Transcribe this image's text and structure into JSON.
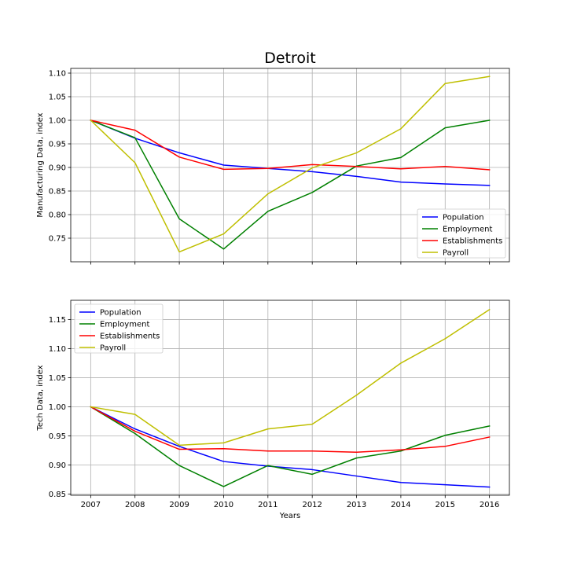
{
  "figure": {
    "title": "Detroit",
    "xlabel": "Years"
  },
  "chart_data": [
    {
      "type": "line",
      "title": "Detroit",
      "xlabel": "",
      "ylabel": "Manufacturing Data, index",
      "x": [
        2007,
        2008,
        2009,
        2010,
        2011,
        2012,
        2013,
        2014,
        2015,
        2016
      ],
      "xlim": [
        2006.55,
        2016.45
      ],
      "ylim": [
        0.7,
        1.11
      ],
      "yticks": [
        0.75,
        0.8,
        0.85,
        0.9,
        0.95,
        1.0,
        1.05,
        1.1
      ],
      "show_xtick_labels": false,
      "grid": true,
      "legend_placement": "lower-right",
      "series": [
        {
          "name": "Population",
          "color": "#0000ff",
          "values": [
            1.0,
            0.962,
            0.931,
            0.905,
            0.898,
            0.891,
            0.881,
            0.869,
            0.865,
            0.862
          ]
        },
        {
          "name": "Employment",
          "color": "#008000",
          "values": [
            1.0,
            0.963,
            0.791,
            0.727,
            0.807,
            0.847,
            0.903,
            0.921,
            0.984,
            1.0
          ]
        },
        {
          "name": "Establishments",
          "color": "#ff0000",
          "values": [
            1.0,
            0.979,
            0.922,
            0.896,
            0.898,
            0.906,
            0.902,
            0.897,
            0.902,
            0.895
          ]
        },
        {
          "name": "Payroll",
          "color": "#bfbf00",
          "values": [
            1.0,
            0.91,
            0.721,
            0.759,
            0.844,
            0.899,
            0.931,
            0.982,
            1.078,
            1.093
          ]
        }
      ]
    },
    {
      "type": "line",
      "title": "",
      "xlabel": "Years",
      "ylabel": "Tech Data, index",
      "x": [
        2007,
        2008,
        2009,
        2010,
        2011,
        2012,
        2013,
        2014,
        2015,
        2016
      ],
      "xlim": [
        2006.55,
        2016.45
      ],
      "ylim": [
        0.848,
        1.183
      ],
      "yticks": [
        0.85,
        0.9,
        0.95,
        1.0,
        1.05,
        1.1,
        1.15
      ],
      "show_xtick_labels": true,
      "grid": true,
      "legend_placement": "upper-left",
      "series": [
        {
          "name": "Population",
          "color": "#0000ff",
          "values": [
            1.0,
            0.962,
            0.932,
            0.906,
            0.898,
            0.892,
            0.881,
            0.87,
            0.866,
            0.862
          ]
        },
        {
          "name": "Employment",
          "color": "#008000",
          "values": [
            1.0,
            0.954,
            0.899,
            0.863,
            0.899,
            0.884,
            0.912,
            0.924,
            0.951,
            0.967
          ]
        },
        {
          "name": "Establishments",
          "color": "#ff0000",
          "values": [
            1.0,
            0.958,
            0.927,
            0.928,
            0.924,
            0.924,
            0.922,
            0.926,
            0.932,
            0.948
          ]
        },
        {
          "name": "Payroll",
          "color": "#bfbf00",
          "values": [
            1.0,
            0.987,
            0.934,
            0.938,
            0.962,
            0.97,
            1.02,
            1.075,
            1.117,
            1.167
          ]
        }
      ]
    }
  ]
}
